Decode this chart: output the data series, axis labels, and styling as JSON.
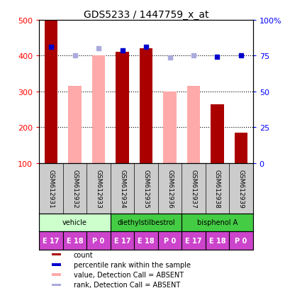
{
  "title": "GDS5233 / 1447759_x_at",
  "samples": [
    "GSM612931",
    "GSM612932",
    "GSM612933",
    "GSM612934",
    "GSM612935",
    "GSM612936",
    "GSM612937",
    "GSM612938",
    "GSM612939"
  ],
  "count_values": [
    500,
    null,
    null,
    410,
    420,
    null,
    null,
    265,
    185
  ],
  "rank_values": [
    425,
    null,
    null,
    415,
    425,
    null,
    null,
    397,
    400
  ],
  "absent_value_values": [
    null,
    315,
    400,
    null,
    null,
    300,
    315,
    null,
    null
  ],
  "absent_rank_values": [
    null,
    400,
    420,
    null,
    null,
    395,
    400,
    null,
    null
  ],
  "ylim_left": [
    100,
    500
  ],
  "ylim_right": [
    0,
    100
  ],
  "yticks_left": [
    100,
    200,
    300,
    400,
    500
  ],
  "yticks_right": [
    0,
    25,
    50,
    75,
    100
  ],
  "ytick_labels_left": [
    "100",
    "200",
    "300",
    "400",
    "500"
  ],
  "ytick_labels_right": [
    "0",
    "25",
    "50",
    "75",
    "100%"
  ],
  "bar_width": 0.55,
  "count_color": "#aa0000",
  "rank_color": "#0000cc",
  "absent_value_color": "#ffaaaa",
  "absent_rank_color": "#aaaadd",
  "sample_bg_color": "#cccccc",
  "agent_vehicle_color": "#ccffcc",
  "agent_other_color": "#44cc44",
  "age_color": "#cc44cc",
  "legend_items": [
    {
      "label": "count",
      "color": "#aa0000"
    },
    {
      "label": "percentile rank within the sample",
      "color": "#0000cc"
    },
    {
      "label": "value, Detection Call = ABSENT",
      "color": "#ffaaaa"
    },
    {
      "label": "rank, Detection Call = ABSENT",
      "color": "#aaaadd"
    }
  ],
  "agent_groups": [
    {
      "label": "vehicle",
      "start": 0,
      "end": 3,
      "color": "#ccffcc"
    },
    {
      "label": "diethylstilbestrol",
      "start": 3,
      "end": 6,
      "color": "#44cc44"
    },
    {
      "label": "bisphenol A",
      "start": 6,
      "end": 9,
      "color": "#44cc44"
    }
  ]
}
